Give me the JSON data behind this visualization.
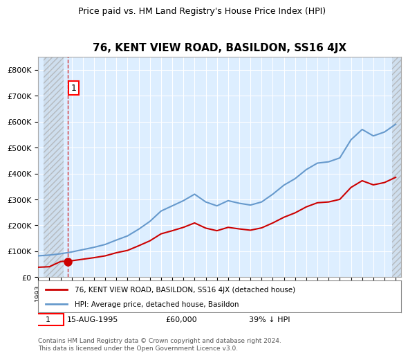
{
  "title": "76, KENT VIEW ROAD, BASILDON, SS16 4JX",
  "subtitle": "Price paid vs. HM Land Registry's House Price Index (HPI)",
  "property_label": "76, KENT VIEW ROAD, BASILDON, SS16 4JX (detached house)",
  "hpi_label": "HPI: Average price, detached house, Basildon",
  "footnote_label": "1",
  "footnote_date": "15-AUG-1995",
  "footnote_price": "£60,000",
  "footnote_hpi": "39% ↓ HPI",
  "copyright": "Contains HM Land Registry data © Crown copyright and database right 2024.\nThis data is licensed under the Open Government Licence v3.0.",
  "property_color": "#cc0000",
  "hpi_color": "#6699cc",
  "hatch_color": "#cccccc",
  "background_color": "#ffffff",
  "plot_bg_color": "#ddeeff",
  "grid_color": "#ffffff",
  "ylim": [
    0,
    850000
  ],
  "yticks": [
    0,
    100000,
    200000,
    300000,
    400000,
    500000,
    600000,
    700000,
    800000
  ],
  "ytick_labels": [
    "£0",
    "£100K",
    "£200K",
    "£300K",
    "£400K",
    "£500K",
    "£600K",
    "£700K",
    "£800K"
  ],
  "xlim_start": 1993.5,
  "xlim_end": 2025.5,
  "sale_year": 1995.62,
  "sale_price": 60000,
  "hpi_years": [
    1993,
    1994,
    1995,
    1996,
    1997,
    1998,
    1999,
    2000,
    2001,
    2002,
    2003,
    2004,
    2005,
    2006,
    2007,
    2008,
    2009,
    2010,
    2011,
    2012,
    2013,
    2014,
    2015,
    2016,
    2017,
    2018,
    2019,
    2020,
    2021,
    2022,
    2023,
    2024,
    2025
  ],
  "hpi_values": [
    82000,
    85000,
    90000,
    97000,
    106000,
    115000,
    126000,
    143000,
    159000,
    185000,
    215000,
    255000,
    275000,
    295000,
    320000,
    290000,
    275000,
    295000,
    285000,
    278000,
    290000,
    320000,
    355000,
    380000,
    415000,
    440000,
    445000,
    460000,
    530000,
    570000,
    545000,
    560000,
    590000
  ],
  "property_years": [
    1993,
    1994,
    1995,
    1996,
    1997,
    1998,
    1999,
    2000,
    2001,
    2002,
    2003,
    2004,
    2005,
    2006,
    2007,
    2008,
    2009,
    2010,
    2011,
    2012,
    2013,
    2014,
    2015,
    2016,
    2017,
    2018,
    2019,
    2020,
    2021,
    2022,
    2023,
    2024,
    2025
  ],
  "property_values": [
    38000,
    40000,
    60000,
    63000,
    69000,
    75000,
    82000,
    94000,
    103000,
    121000,
    140000,
    167000,
    179000,
    192000,
    209000,
    189000,
    179000,
    192000,
    186000,
    181000,
    190000,
    209000,
    231000,
    248000,
    271000,
    287000,
    290000,
    300000,
    346000,
    372000,
    356000,
    365000,
    385000
  ]
}
